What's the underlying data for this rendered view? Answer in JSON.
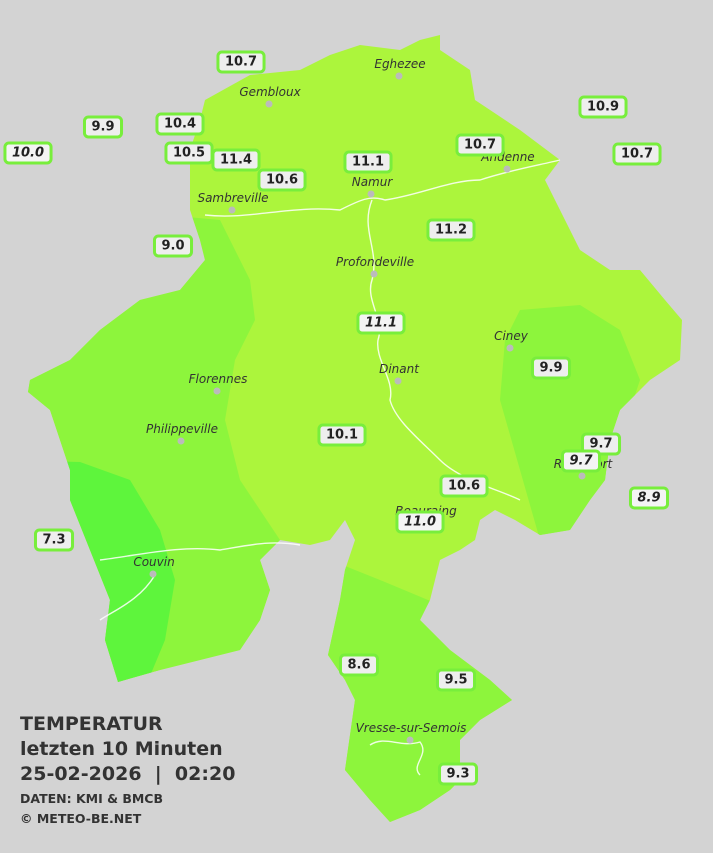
{
  "map": {
    "towns": [
      "Eghezee",
      "Gembloux",
      "Andenne",
      "Namur",
      "Sambreville",
      "Profondeville",
      "Ciney",
      "Florennes",
      "Dinant",
      "Philippeville",
      "Rochefort",
      "Beauraing",
      "Couvin",
      "Vresse-sur-Semois"
    ],
    "stations": [
      {
        "value": "10.7",
        "italic": false
      },
      {
        "value": "9.9",
        "italic": false
      },
      {
        "value": "10.4",
        "italic": false
      },
      {
        "value": "10.0",
        "italic": true
      },
      {
        "value": "10.5",
        "italic": false
      },
      {
        "value": "11.4",
        "italic": false
      },
      {
        "value": "10.6",
        "italic": false
      },
      {
        "value": "11.1",
        "italic": false
      },
      {
        "value": "10.7",
        "italic": false
      },
      {
        "value": "10.9",
        "italic": false
      },
      {
        "value": "10.7",
        "italic": false
      },
      {
        "value": "11.2",
        "italic": false
      },
      {
        "value": "9.0",
        "italic": false
      },
      {
        "value": "11.1",
        "italic": true
      },
      {
        "value": "9.9",
        "italic": false
      },
      {
        "value": "10.1",
        "italic": false
      },
      {
        "value": "9.7",
        "italic": false
      },
      {
        "value": "9.7",
        "italic": true
      },
      {
        "value": "10.6",
        "italic": false
      },
      {
        "value": "8.9",
        "italic": true
      },
      {
        "value": "11.0",
        "italic": true
      },
      {
        "value": "7.3",
        "italic": false
      },
      {
        "value": "8.6",
        "italic": false
      },
      {
        "value": "9.5",
        "italic": false
      },
      {
        "value": "9.3",
        "italic": false
      }
    ],
    "caption": {
      "title": "TEMPERATUR",
      "subtitle": "letzten 10 Minuten",
      "datetime": "25-02-2026  |  02:20",
      "source": "DATEN: KMI & BMCB",
      "copyright": "© METEO-BE.NET"
    }
  }
}
